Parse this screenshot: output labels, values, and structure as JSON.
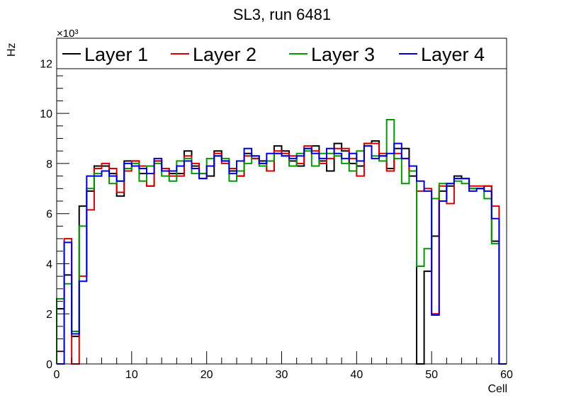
{
  "chart_data": {
    "type": "line",
    "title": "SL3, run 6481",
    "xlabel": "Cell",
    "ylabel": "Hz",
    "y_multiplier": "×10³",
    "xlim": [
      0,
      60
    ],
    "ylim": [
      0,
      13
    ],
    "x_ticks": [
      0,
      10,
      20,
      30,
      40,
      50,
      60
    ],
    "y_ticks": [
      0,
      2,
      4,
      6,
      8,
      10,
      12
    ],
    "legend_placement": "top",
    "bin_width": 1,
    "series": [
      {
        "name": "Layer 1",
        "color": "#000000",
        "values": [
          2.2,
          3.55,
          1.1,
          6.3,
          6.9,
          7.9,
          7.9,
          7.6,
          6.7,
          8.1,
          8.1,
          7.6,
          7.1,
          8.1,
          7.8,
          7.6,
          7.6,
          8.5,
          7.9,
          7.6,
          7.5,
          8.5,
          8.1,
          7.7,
          7.5,
          8.4,
          8.2,
          8.1,
          7.7,
          8.7,
          8.5,
          8.1,
          7.9,
          8.6,
          8.7,
          8.1,
          7.7,
          8.8,
          8.5,
          8.0,
          7.9,
          8.8,
          8.9,
          8.3,
          7.8,
          8.6,
          8.6,
          7.5,
          0,
          3.7,
          5.1,
          6.9,
          7.1,
          7.5,
          7.4,
          7.0,
          7.0,
          7.1,
          4.9,
          0
        ]
      },
      {
        "name": "Layer 2",
        "color": "#d40000",
        "values": [
          0.5,
          5.0,
          0,
          3.5,
          6.15,
          7.8,
          8.0,
          7.8,
          6.85,
          7.7,
          8.1,
          7.9,
          7.1,
          8.1,
          7.8,
          7.5,
          7.5,
          8.3,
          8.0,
          7.4,
          7.9,
          8.4,
          8.0,
          7.8,
          7.5,
          8.3,
          8.2,
          8.0,
          7.7,
          8.5,
          8.4,
          8.3,
          8.0,
          8.7,
          8.5,
          8.0,
          8.2,
          8.6,
          8.6,
          8.2,
          7.5,
          8.8,
          8.8,
          8.4,
          7.7,
          8.4,
          8.2,
          7.7,
          6.9,
          7.0,
          2.0,
          7.1,
          6.4,
          7.4,
          7.4,
          7.1,
          7.1,
          7.1,
          6.3,
          0
        ]
      },
      {
        "name": "Layer 3",
        "color": "#009900",
        "values": [
          2.6,
          3.2,
          1.3,
          5.5,
          7.0,
          7.6,
          7.7,
          7.2,
          7.3,
          7.8,
          8.0,
          7.3,
          7.9,
          8.0,
          7.5,
          7.3,
          8.1,
          8.2,
          7.6,
          7.6,
          8.2,
          8.3,
          8.2,
          7.3,
          7.7,
          8.0,
          8.3,
          7.9,
          8.1,
          8.4,
          8.3,
          7.9,
          8.4,
          8.5,
          7.9,
          8.4,
          8.4,
          8.3,
          8.0,
          7.7,
          8.5,
          8.7,
          8.3,
          8.1,
          9.75,
          8.2,
          7.2,
          7.7,
          3.9,
          4.6,
          6.6,
          7.2,
          7.2,
          7.3,
          7.2,
          7.0,
          7.0,
          6.6,
          4.8,
          0
        ]
      },
      {
        "name": "Layer 4",
        "color": "#0000dd",
        "values": [
          0,
          4.85,
          1.2,
          3.3,
          7.5,
          7.5,
          7.7,
          7.5,
          7.3,
          8.0,
          7.9,
          7.8,
          7.6,
          8.2,
          7.7,
          7.7,
          7.9,
          8.1,
          7.8,
          7.4,
          7.9,
          8.3,
          8.1,
          7.6,
          8.1,
          8.6,
          8.3,
          8.0,
          8.4,
          8.4,
          8.3,
          8.2,
          8.3,
          8.6,
          8.4,
          8.2,
          8.6,
          8.4,
          8.2,
          8.4,
          8.1,
          8.7,
          8.2,
          8.3,
          8.4,
          8.8,
          8.2,
          7.9,
          7.3,
          6.9,
          1.95,
          6.5,
          7.2,
          7.4,
          7.4,
          6.9,
          7.0,
          6.9,
          5.8,
          0
        ]
      }
    ]
  }
}
